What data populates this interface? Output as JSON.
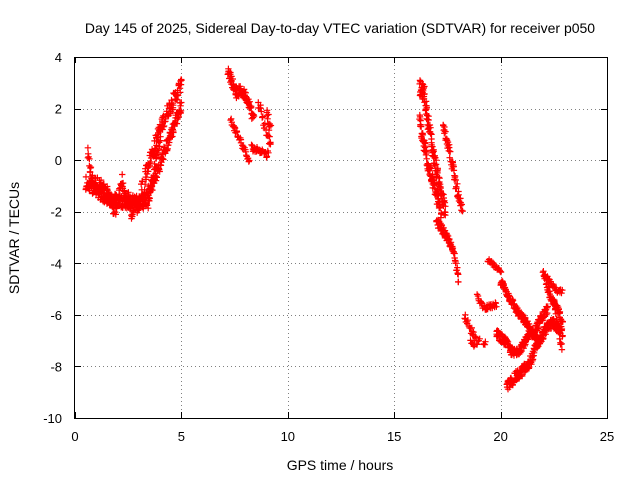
{
  "chart_data": {
    "type": "scatter",
    "title": "Day 145 of 2025, Sidereal Day-to-day VTEC variation (SDTVAR) for receiver p050",
    "xlabel": "GPS time / hours",
    "ylabel": "SDTVAR / TECUs",
    "xlim": [
      0,
      25
    ],
    "ylim": [
      -10,
      4
    ],
    "x_ticks": [
      0,
      5,
      10,
      15,
      20,
      25
    ],
    "y_ticks": [
      -10,
      -8,
      -6,
      -4,
      -2,
      0,
      2,
      4
    ],
    "grid": true,
    "marker": "+",
    "series_color": "#ff0000",
    "series": [
      {
        "name": "SDTVAR",
        "segments": [
          {
            "points": [
              [
                0.6,
                0.2
              ],
              [
                0.7,
                -0.3
              ],
              [
                0.8,
                -0.8
              ],
              [
                0.9,
                -0.9
              ],
              [
                1.0,
                -0.9
              ],
              [
                1.2,
                -1.0
              ],
              [
                1.4,
                -1.2
              ],
              [
                1.5,
                -1.3
              ],
              [
                1.6,
                -1.5
              ],
              [
                1.8,
                -1.8
              ],
              [
                1.9,
                -2.0
              ],
              [
                2.0,
                -1.6
              ],
              [
                2.1,
                -1.1
              ],
              [
                2.2,
                -0.8
              ],
              [
                2.3,
                -1.3
              ],
              [
                2.4,
                -1.7
              ],
              [
                2.5,
                -1.5
              ],
              [
                2.6,
                -1.9
              ],
              [
                2.7,
                -2.1
              ],
              [
                2.8,
                -1.5
              ],
              [
                2.9,
                -1.8
              ],
              [
                3.0,
                -2.0
              ],
              [
                3.1,
                -1.4
              ],
              [
                3.15,
                -1.0
              ],
              [
                3.2,
                -1.8
              ],
              [
                3.25,
                -1.2
              ],
              [
                3.3,
                -0.6
              ],
              [
                3.4,
                -0.3
              ],
              [
                3.5,
                0.0
              ],
              [
                3.6,
                0.2
              ],
              [
                3.7,
                0.4
              ],
              [
                3.8,
                0.7
              ],
              [
                3.9,
                1.0
              ],
              [
                4.0,
                1.2
              ],
              [
                4.1,
                1.4
              ],
              [
                4.2,
                1.6
              ],
              [
                4.3,
                1.8
              ],
              [
                4.4,
                2.0
              ],
              [
                4.5,
                2.1
              ],
              [
                4.6,
                2.3
              ],
              [
                4.7,
                2.4
              ],
              [
                4.8,
                2.6
              ],
              [
                4.9,
                2.8
              ],
              [
                5.0,
                2.9
              ]
            ],
            "jitter": 0.28,
            "dup": 2
          },
          {
            "points": [
              [
                0.5,
                -0.9
              ],
              [
                0.9,
                -1.1
              ],
              [
                1.3,
                -1.4
              ],
              [
                1.7,
                -1.5
              ],
              [
                2.2,
                -1.6
              ],
              [
                2.8,
                -1.6
              ],
              [
                3.3,
                -1.6
              ],
              [
                3.6,
                -1.0
              ],
              [
                3.9,
                -0.4
              ],
              [
                4.2,
                0.3
              ],
              [
                4.5,
                1.0
              ],
              [
                4.8,
                1.7
              ],
              [
                5.0,
                2.1
              ]
            ],
            "jitter": 0.25,
            "dup": 2
          },
          {
            "points": [
              [
                3.4,
                -1.8
              ],
              [
                3.5,
                -1.4
              ],
              [
                3.6,
                -1.0
              ],
              [
                3.7,
                -0.5
              ],
              [
                3.8,
                0.0
              ],
              [
                3.9,
                0.4
              ],
              [
                4.0,
                0.8
              ]
            ],
            "jitter": 0.2,
            "dup": 2
          },
          {
            "points": [
              [
                7.2,
                3.5
              ],
              [
                7.4,
                3.0
              ],
              [
                7.6,
                2.6
              ],
              [
                7.8,
                2.7
              ],
              [
                8.0,
                2.5
              ],
              [
                8.2,
                2.2
              ],
              [
                8.3,
                1.8
              ],
              [
                8.4,
                1.6
              ]
            ],
            "jitter": 0.2,
            "dup": 2
          },
          {
            "points": [
              [
                7.3,
                1.6
              ],
              [
                7.5,
                1.2
              ],
              [
                7.7,
                0.9
              ],
              [
                7.9,
                0.5
              ],
              [
                8.1,
                0.1
              ],
              [
                8.2,
                -0.1
              ]
            ],
            "jitter": 0.12,
            "dup": 1
          },
          {
            "points": [
              [
                8.3,
                0.5
              ],
              [
                8.5,
                0.4
              ],
              [
                8.7,
                0.4
              ],
              [
                8.9,
                0.3
              ],
              [
                9.0,
                0.2
              ],
              [
                9.1,
                0.3
              ]
            ],
            "jitter": 0.12,
            "dup": 1
          },
          {
            "points": [
              [
                8.6,
                2.3
              ],
              [
                8.7,
                2.0
              ],
              [
                8.8,
                1.7
              ],
              [
                8.9,
                1.4
              ],
              [
                9.0,
                1.1
              ],
              [
                9.1,
                0.8
              ],
              [
                9.2,
                0.6
              ],
              [
                9.0,
                2.0
              ],
              [
                9.1,
                1.6
              ],
              [
                9.2,
                1.2
              ]
            ],
            "jitter": 0.18,
            "dup": 1
          },
          {
            "points": [
              [
                16.2,
                2.8
              ],
              [
                16.4,
                2.6
              ],
              [
                16.5,
                2.0
              ],
              [
                16.6,
                1.5
              ],
              [
                16.7,
                1.0
              ],
              [
                16.8,
                0.4
              ],
              [
                16.9,
                0.0
              ],
              [
                17.0,
                -0.4
              ],
              [
                17.1,
                -0.8
              ],
              [
                17.2,
                -1.2
              ],
              [
                17.3,
                -1.6
              ],
              [
                17.4,
                -2.0
              ]
            ],
            "jitter": 0.3,
            "dup": 3
          },
          {
            "points": [
              [
                16.2,
                1.5
              ],
              [
                16.3,
                1.0
              ],
              [
                16.4,
                0.6
              ],
              [
                16.5,
                0.2
              ],
              [
                16.6,
                -0.2
              ],
              [
                16.7,
                -0.5
              ],
              [
                16.8,
                -0.8
              ],
              [
                16.9,
                -1.1
              ],
              [
                17.0,
                -1.4
              ],
              [
                17.1,
                -1.7
              ],
              [
                17.2,
                -2.0
              ]
            ],
            "jitter": 0.28,
            "dup": 3
          },
          {
            "points": [
              [
                17.3,
                1.5
              ],
              [
                17.4,
                1.1
              ],
              [
                17.5,
                0.7
              ],
              [
                17.6,
                0.3
              ],
              [
                17.7,
                -0.1
              ],
              [
                17.8,
                -0.5
              ],
              [
                17.9,
                -0.9
              ],
              [
                18.0,
                -1.3
              ],
              [
                18.1,
                -1.7
              ],
              [
                18.2,
                -2.1
              ]
            ],
            "jitter": 0.25,
            "dup": 2
          },
          {
            "points": [
              [
                17.0,
                -2.4
              ],
              [
                17.2,
                -2.6
              ],
              [
                17.4,
                -2.9
              ],
              [
                17.6,
                -3.2
              ],
              [
                17.8,
                -3.6
              ],
              [
                17.9,
                -4.0
              ],
              [
                18.0,
                -4.4
              ],
              [
                18.0,
                -4.8
              ]
            ],
            "jitter": 0.15,
            "dup": 2
          },
          {
            "points": [
              [
                18.3,
                -6.0
              ],
              [
                18.5,
                -6.3
              ],
              [
                18.6,
                -6.6
              ],
              [
                18.8,
                -6.9
              ],
              [
                18.9,
                -7.1
              ],
              [
                19.0,
                -7.0
              ]
            ],
            "jitter": 0.15,
            "dup": 1
          },
          {
            "points": [
              [
                18.9,
                -5.3
              ],
              [
                19.2,
                -5.7
              ],
              [
                19.5,
                -5.7
              ],
              [
                19.8,
                -5.6
              ]
            ],
            "jitter": 0.1,
            "dup": 1
          },
          {
            "points": [
              [
                18.6,
                -7.0
              ],
              [
                18.7,
                -7.2
              ],
              [
                18.8,
                -7.2
              ]
            ],
            "jitter": 0.08,
            "dup": 1
          },
          {
            "points": [
              [
                19.2,
                -7.2
              ],
              [
                19.3,
                -7.1
              ]
            ],
            "jitter": 0.06,
            "dup": 1
          },
          {
            "points": [
              [
                19.4,
                -3.9
              ],
              [
                19.6,
                -4.0
              ],
              [
                19.8,
                -4.2
              ],
              [
                20.0,
                -4.3
              ]
            ],
            "jitter": 0.08,
            "dup": 1
          },
          {
            "points": [
              [
                20.0,
                -4.7
              ],
              [
                20.2,
                -5.0
              ],
              [
                20.4,
                -5.3
              ],
              [
                20.6,
                -5.6
              ],
              [
                20.8,
                -5.9
              ],
              [
                21.0,
                -6.1
              ],
              [
                21.2,
                -6.3
              ],
              [
                21.4,
                -6.6
              ],
              [
                21.6,
                -6.8
              ],
              [
                21.8,
                -7.0
              ]
            ],
            "jitter": 0.15,
            "dup": 2
          },
          {
            "points": [
              [
                19.8,
                -6.7
              ],
              [
                20.0,
                -6.9
              ],
              [
                20.2,
                -7.0
              ],
              [
                20.4,
                -7.3
              ],
              [
                20.6,
                -7.5
              ],
              [
                20.8,
                -7.4
              ],
              [
                21.0,
                -7.2
              ],
              [
                21.2,
                -7.0
              ],
              [
                21.4,
                -6.8
              ],
              [
                21.6,
                -6.6
              ],
              [
                21.8,
                -6.3
              ],
              [
                22.0,
                -6.0
              ],
              [
                22.2,
                -5.8
              ]
            ],
            "jitter": 0.18,
            "dup": 2
          },
          {
            "points": [
              [
                20.3,
                -8.8
              ],
              [
                20.5,
                -8.6
              ],
              [
                20.7,
                -8.4
              ],
              [
                20.9,
                -8.3
              ],
              [
                21.1,
                -8.1
              ],
              [
                21.3,
                -8.0
              ],
              [
                21.5,
                -7.6
              ],
              [
                21.7,
                -7.2
              ],
              [
                21.9,
                -6.9
              ],
              [
                22.1,
                -6.6
              ],
              [
                22.3,
                -6.4
              ],
              [
                22.5,
                -6.3
              ],
              [
                22.7,
                -6.5
              ],
              [
                22.9,
                -6.7
              ]
            ],
            "jitter": 0.2,
            "dup": 2
          },
          {
            "points": [
              [
                22.0,
                -4.3
              ],
              [
                22.1,
                -4.6
              ],
              [
                22.2,
                -4.9
              ],
              [
                22.3,
                -5.2
              ],
              [
                22.4,
                -5.4
              ],
              [
                22.6,
                -5.7
              ],
              [
                22.8,
                -6.0
              ],
              [
                22.9,
                -6.3
              ]
            ],
            "jitter": 0.15,
            "dup": 2
          },
          {
            "points": [
              [
                22.2,
                -4.6
              ],
              [
                22.4,
                -4.8
              ],
              [
                22.6,
                -5.0
              ],
              [
                22.8,
                -5.1
              ],
              [
                22.9,
                -5.1
              ]
            ],
            "jitter": 0.1,
            "dup": 1
          },
          {
            "points": [
              [
                22.5,
                -5.5
              ],
              [
                22.6,
                -6.0
              ],
              [
                22.7,
                -6.5
              ],
              [
                22.8,
                -7.0
              ],
              [
                22.9,
                -7.3
              ]
            ],
            "jitter": 0.12,
            "dup": 1
          }
        ]
      }
    ]
  }
}
